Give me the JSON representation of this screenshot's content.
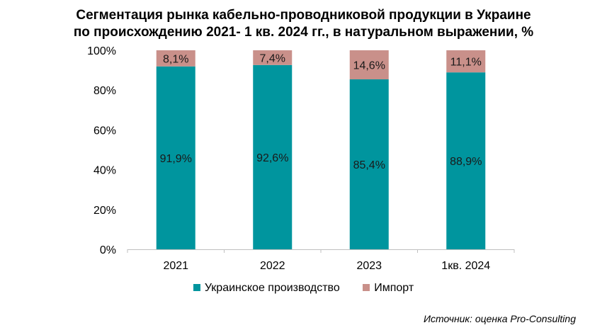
{
  "title_line1": "Сегментация рынка кабельно-проводниковой продукции в Украине",
  "title_line2": "по происхождению 2021- 1 кв. 2024 гг., в натуральном выражении, %",
  "source": "Источник: оценка Pro-Consulting",
  "colors": {
    "domestic": "#00959E",
    "import": "#C9908A"
  },
  "chart_data": {
    "type": "bar",
    "stacked": true,
    "categories": [
      "2021",
      "2022",
      "2023",
      "1кв. 2024"
    ],
    "series": [
      {
        "name": "Украинское производство",
        "values": [
          91.9,
          92.6,
          85.4,
          88.9
        ],
        "labels": [
          "91,9%",
          "92,6%",
          "85,4%",
          "88,9%"
        ]
      },
      {
        "name": "Импорт",
        "values": [
          8.1,
          7.4,
          14.6,
          11.1
        ],
        "labels": [
          "8,1%",
          "7,4%",
          "14,6%",
          "11,1%"
        ]
      }
    ],
    "ylim": [
      0,
      100
    ],
    "yticks": [
      "0%",
      "20%",
      "40%",
      "60%",
      "80%",
      "100%"
    ],
    "legend_position": "bottom",
    "grid": false
  }
}
